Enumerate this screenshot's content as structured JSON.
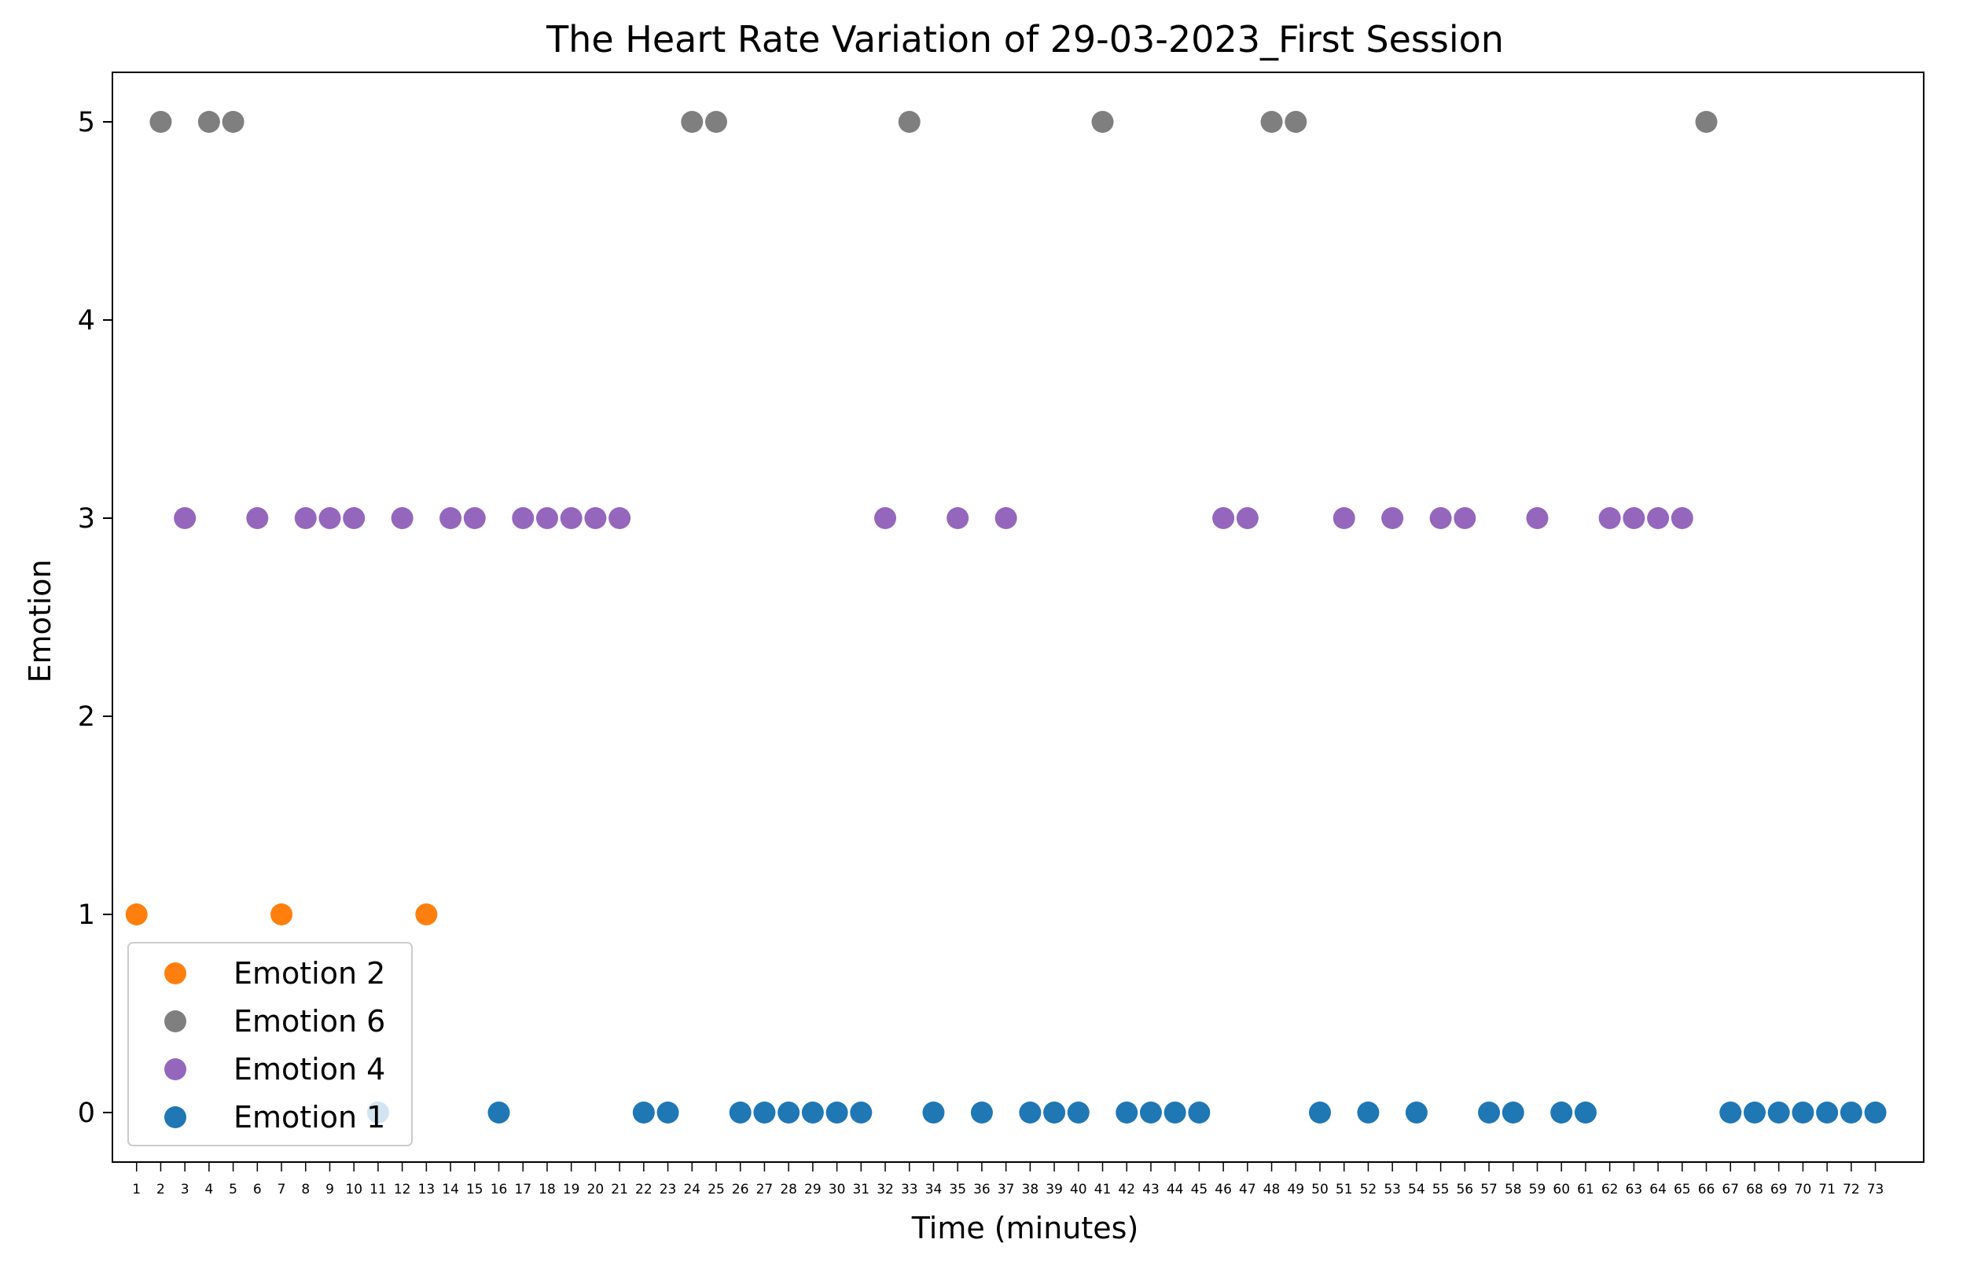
{
  "chart_data": {
    "type": "scatter",
    "title": "The Heart Rate Variation of 29-03-2023_First Session",
    "xlabel": "Time (minutes)",
    "ylabel": "Emotion",
    "xlim": [
      0,
      75
    ],
    "ylim": [
      -0.25,
      5.25
    ],
    "yticks": [
      0,
      1,
      2,
      3,
      4,
      5
    ],
    "xticks": [
      1,
      2,
      3,
      4,
      5,
      6,
      7,
      8,
      9,
      10,
      11,
      12,
      13,
      14,
      15,
      16,
      17,
      18,
      19,
      20,
      21,
      22,
      23,
      24,
      25,
      26,
      27,
      28,
      29,
      30,
      31,
      32,
      33,
      34,
      35,
      36,
      37,
      38,
      39,
      40,
      41,
      42,
      43,
      44,
      45,
      46,
      47,
      48,
      49,
      50,
      51,
      52,
      53,
      54,
      55,
      56,
      57,
      58,
      59,
      60,
      61,
      62,
      63,
      64,
      65,
      66,
      67,
      68,
      69,
      70,
      71,
      72,
      73
    ],
    "grid": false,
    "legend_position": "lower-left",
    "series": [
      {
        "name": "Emotion 2",
        "color": "#ff7f0e",
        "y": 1,
        "x": [
          1,
          7,
          13
        ]
      },
      {
        "name": "Emotion 6",
        "color": "#7f7f7f",
        "y": 5,
        "x": [
          2,
          4,
          5,
          24,
          25,
          33,
          41,
          48,
          49,
          66
        ]
      },
      {
        "name": "Emotion 4",
        "color": "#9467bd",
        "y": 3,
        "x": [
          3,
          6,
          8,
          9,
          10,
          12,
          14,
          15,
          17,
          18,
          19,
          20,
          21,
          32,
          35,
          37,
          46,
          47,
          51,
          53,
          55,
          56,
          59,
          62,
          63,
          64,
          65
        ]
      },
      {
        "name": "Emotion 1",
        "color": "#1f77b4",
        "y": 0,
        "x": [
          11,
          16,
          22,
          23,
          26,
          27,
          28,
          29,
          30,
          31,
          34,
          36,
          38,
          39,
          40,
          42,
          43,
          44,
          45,
          50,
          52,
          54,
          57,
          58,
          60,
          61,
          67,
          68,
          69,
          70,
          71,
          72,
          73
        ]
      }
    ]
  }
}
